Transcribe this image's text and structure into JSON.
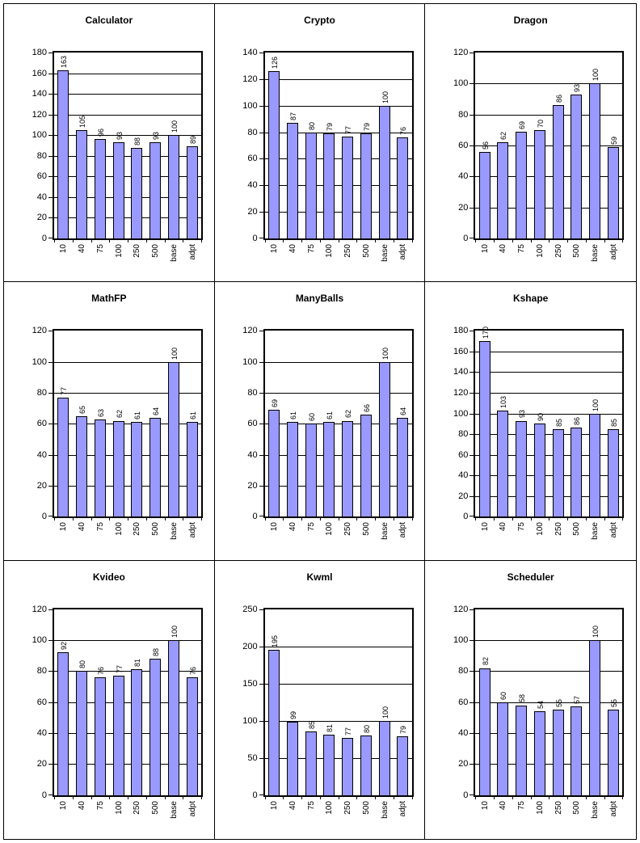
{
  "page": {
    "background": "#ffffff",
    "bar_fill": "#9999ff",
    "bar_border": "#000000",
    "gridline_color": "#000000",
    "panel_border": "#000000"
  },
  "chart_data": [
    {
      "type": "bar",
      "title": "Calculator",
      "categories": [
        "10",
        "40",
        "75",
        "100",
        "250",
        "500",
        "base",
        "adpt"
      ],
      "values": [
        163,
        105,
        96,
        93,
        88,
        93,
        100,
        89
      ],
      "ylim": [
        0,
        180
      ],
      "yticks": [
        0,
        20,
        40,
        60,
        80,
        100,
        120,
        140,
        160,
        180
      ],
      "grid": "horizontal",
      "legend": "none"
    },
    {
      "type": "bar",
      "title": "Crypto",
      "categories": [
        "10",
        "40",
        "75",
        "100",
        "250",
        "500",
        "base",
        "adpt"
      ],
      "values": [
        126,
        87,
        80,
        79,
        77,
        79,
        100,
        76
      ],
      "ylim": [
        0,
        140
      ],
      "yticks": [
        0,
        20,
        40,
        60,
        80,
        100,
        120,
        140
      ],
      "grid": "horizontal",
      "legend": "none"
    },
    {
      "type": "bar",
      "title": "Dragon",
      "categories": [
        "10",
        "40",
        "75",
        "100",
        "250",
        "500",
        "base",
        "adpt"
      ],
      "values": [
        56,
        62,
        69,
        70,
        86,
        93,
        100,
        59
      ],
      "ylim": [
        0,
        120
      ],
      "yticks": [
        0,
        20,
        40,
        60,
        80,
        100,
        120
      ],
      "grid": "horizontal",
      "legend": "none"
    },
    {
      "type": "bar",
      "title": "MathFP",
      "categories": [
        "10",
        "40",
        "75",
        "100",
        "250",
        "500",
        "base",
        "adpt"
      ],
      "values": [
        77,
        65,
        63,
        62,
        61,
        64,
        100,
        61
      ],
      "ylim": [
        0,
        120
      ],
      "yticks": [
        0,
        20,
        40,
        60,
        80,
        100,
        120
      ],
      "grid": "horizontal",
      "legend": "none"
    },
    {
      "type": "bar",
      "title": "ManyBalls",
      "categories": [
        "10",
        "40",
        "75",
        "100",
        "250",
        "500",
        "base",
        "adpt"
      ],
      "values": [
        69,
        61,
        60,
        61,
        62,
        66,
        100,
        64
      ],
      "ylim": [
        0,
        120
      ],
      "yticks": [
        0,
        20,
        40,
        60,
        80,
        100,
        120
      ],
      "grid": "horizontal",
      "legend": "none"
    },
    {
      "type": "bar",
      "title": "Kshape",
      "categories": [
        "10",
        "40",
        "75",
        "100",
        "250",
        "500",
        "base",
        "adpt"
      ],
      "values": [
        170,
        103,
        93,
        90,
        85,
        86,
        100,
        85
      ],
      "ylim": [
        0,
        180
      ],
      "yticks": [
        0,
        20,
        40,
        60,
        80,
        100,
        120,
        140,
        160,
        180
      ],
      "grid": "horizontal",
      "legend": "none"
    },
    {
      "type": "bar",
      "title": "Kvideo",
      "categories": [
        "10",
        "40",
        "75",
        "100",
        "250",
        "500",
        "base",
        "adpt"
      ],
      "values": [
        92,
        80,
        76,
        77,
        81,
        88,
        100,
        76
      ],
      "ylim": [
        0,
        120
      ],
      "yticks": [
        0,
        20,
        40,
        60,
        80,
        100,
        120
      ],
      "grid": "horizontal",
      "legend": "none"
    },
    {
      "type": "bar",
      "title": "Kwml",
      "categories": [
        "10",
        "40",
        "75",
        "100",
        "250",
        "500",
        "base",
        "adpt"
      ],
      "values": [
        195,
        99,
        85,
        81,
        77,
        80,
        100,
        79
      ],
      "ylim": [
        0,
        250
      ],
      "yticks": [
        0,
        50,
        100,
        150,
        200,
        250
      ],
      "grid": "horizontal",
      "legend": "none"
    },
    {
      "type": "bar",
      "title": "Scheduler",
      "categories": [
        "10",
        "40",
        "75",
        "100",
        "250",
        "500",
        "base",
        "adpt"
      ],
      "values": [
        82,
        60,
        58,
        54,
        55,
        57,
        100,
        55
      ],
      "ylim": [
        0,
        120
      ],
      "yticks": [
        0,
        20,
        40,
        60,
        80,
        100,
        120
      ],
      "grid": "horizontal",
      "legend": "none"
    }
  ]
}
